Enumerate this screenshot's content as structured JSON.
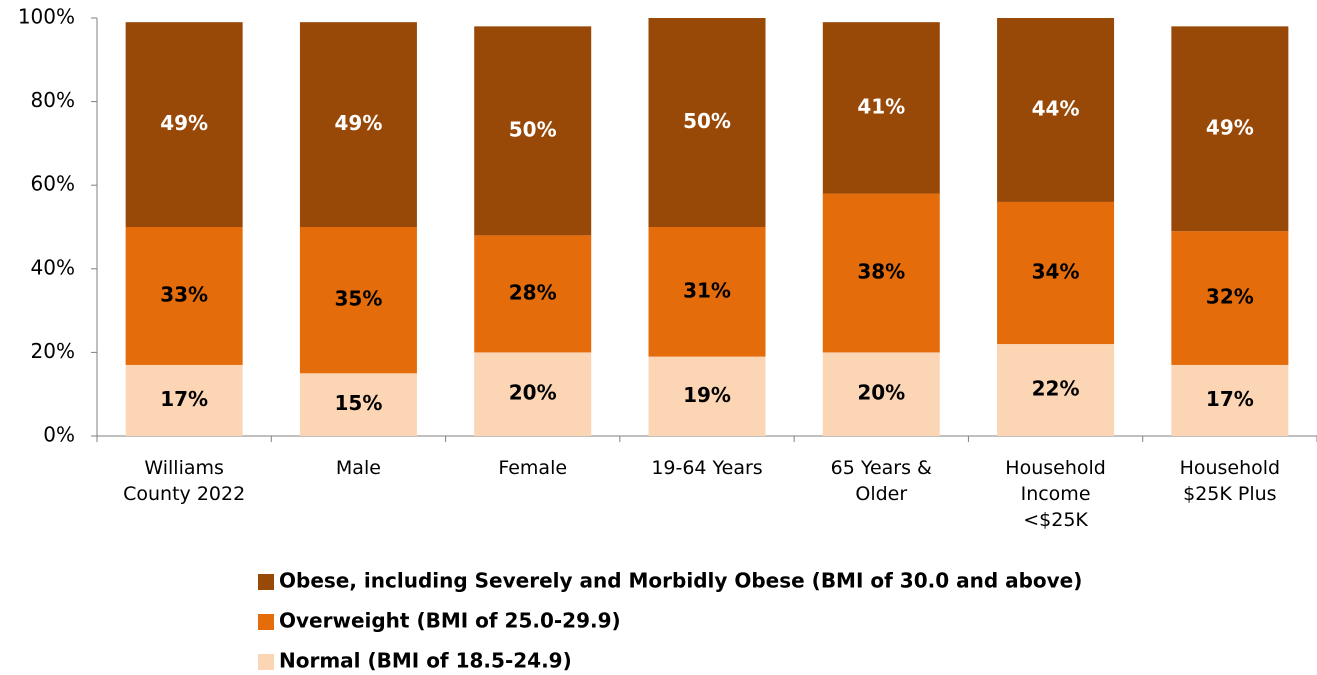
{
  "chart_data": {
    "type": "stacked_bar",
    "categories": [
      "Williams County 2022",
      "Male",
      "Female",
      "19-64 Years",
      "65 Years & Older",
      "Household Income <$25K",
      "Household $25K Plus"
    ],
    "series": [
      {
        "name": "Normal (BMI of 18.5-24.9)",
        "color": "#fcd5b5",
        "label_color": "#000000",
        "values": [
          17,
          15,
          20,
          19,
          20,
          22,
          17
        ],
        "value_labels": [
          "17%",
          "15%",
          "20%",
          "19%",
          "20%",
          "22%",
          "17%"
        ]
      },
      {
        "name": "Overweight (BMI of 25.0-29.9)",
        "color": "#e46c0a",
        "label_color": "#000000",
        "values": [
          33,
          35,
          28,
          31,
          38,
          34,
          32
        ],
        "value_labels": [
          "33%",
          "35%",
          "28%",
          "31%",
          "38%",
          "34%",
          "32%"
        ]
      },
      {
        "name": "Obese, including Severely and Morbidly Obese (BMI of 30.0 and above)",
        "color": "#984807",
        "label_color": "#ffffff",
        "values": [
          49,
          49,
          50,
          50,
          41,
          44,
          49
        ],
        "value_labels": [
          "49%",
          "49%",
          "50%",
          "50%",
          "41%",
          "44%",
          "49%"
        ]
      }
    ],
    "ylim": [
      0,
      100
    ],
    "yticks": [
      {
        "value": 0,
        "label": "0%"
      },
      {
        "value": 20,
        "label": "20%"
      },
      {
        "value": 40,
        "label": "40%"
      },
      {
        "value": 60,
        "label": "60%"
      },
      {
        "value": 80,
        "label": "80%"
      },
      {
        "value": 100,
        "label": "100%"
      }
    ],
    "legend": "bottom"
  }
}
